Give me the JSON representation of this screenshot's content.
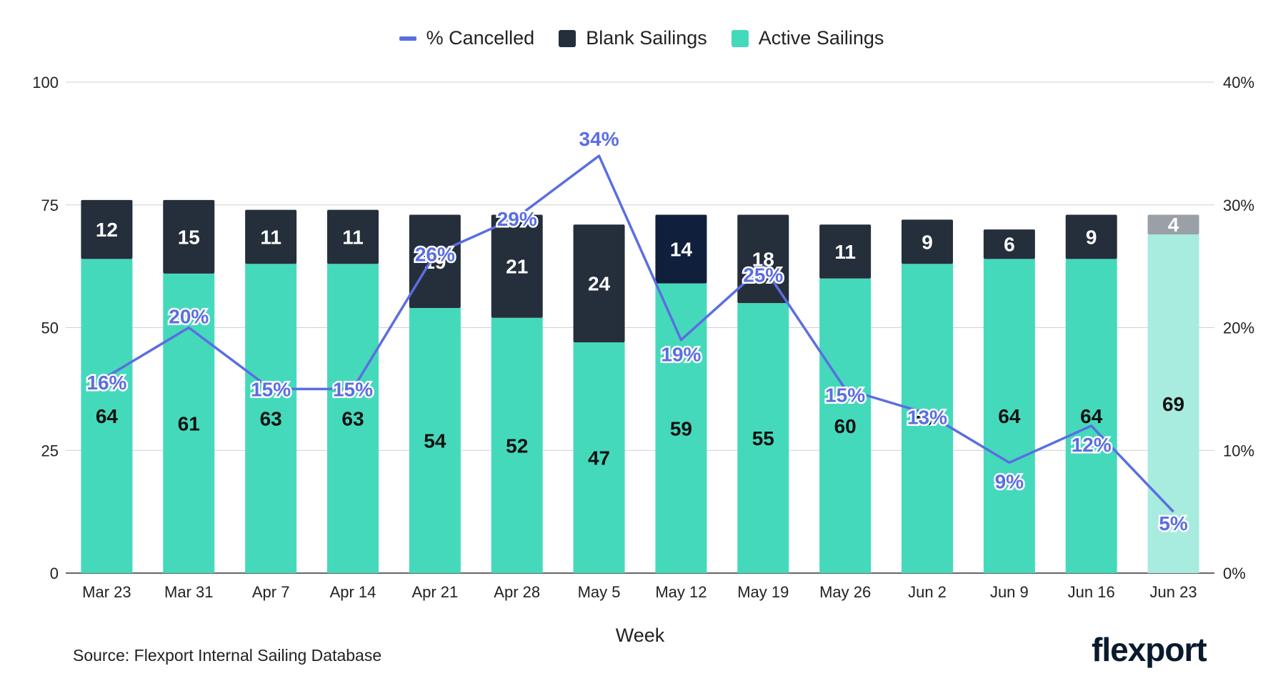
{
  "legend": {
    "cancelled": "% Cancelled",
    "blank": "Blank Sailings",
    "active": "Active Sailings"
  },
  "source": "Source: Flexport Internal Sailing Database",
  "logo": "flexport",
  "colors": {
    "active": "#45D9BC",
    "active_light": "#A7ECDE",
    "blank": "#252E3B",
    "blank_highlight": "#0F1F3C",
    "blank_light": "#9AA0A6",
    "line": "#5B6EE1",
    "grid": "#D0D0D0"
  },
  "chart_data": {
    "type": "bar",
    "stacked": true,
    "xlabel": "Week",
    "ylabel": "",
    "ylim": [
      0,
      100
    ],
    "y2lim": [
      0,
      40
    ],
    "yticks": [
      "0",
      "25",
      "50",
      "75",
      "100"
    ],
    "y2ticks": [
      "0%",
      "10%",
      "20%",
      "30%",
      "40%"
    ],
    "categories": [
      "Mar 23",
      "Mar 31",
      "Apr 7",
      "Apr 14",
      "Apr 21",
      "Apr 28",
      "May 5",
      "May 12",
      "May 19",
      "May 26",
      "Jun 2",
      "Jun 9",
      "Jun 16",
      "Jun 23"
    ],
    "series": [
      {
        "name": "Active Sailings",
        "values": [
          64,
          61,
          63,
          63,
          54,
          52,
          47,
          59,
          55,
          60,
          63,
          64,
          64,
          69
        ]
      },
      {
        "name": "Blank Sailings",
        "values": [
          12,
          15,
          11,
          11,
          19,
          21,
          24,
          14,
          18,
          11,
          9,
          6,
          9,
          4
        ]
      },
      {
        "name": "% Cancelled",
        "axis": "right",
        "values": [
          16,
          20,
          15,
          15,
          26,
          29,
          34,
          19,
          25,
          15,
          13,
          9,
          12,
          5
        ],
        "labels": [
          "16%",
          "20%",
          "15%",
          "15%",
          "26%",
          "29%",
          "34%",
          "19%",
          "25%",
          "15%",
          "13%",
          "9%",
          "12%",
          "5%"
        ]
      }
    ],
    "highlight_index": 7,
    "projected_index": 13
  }
}
